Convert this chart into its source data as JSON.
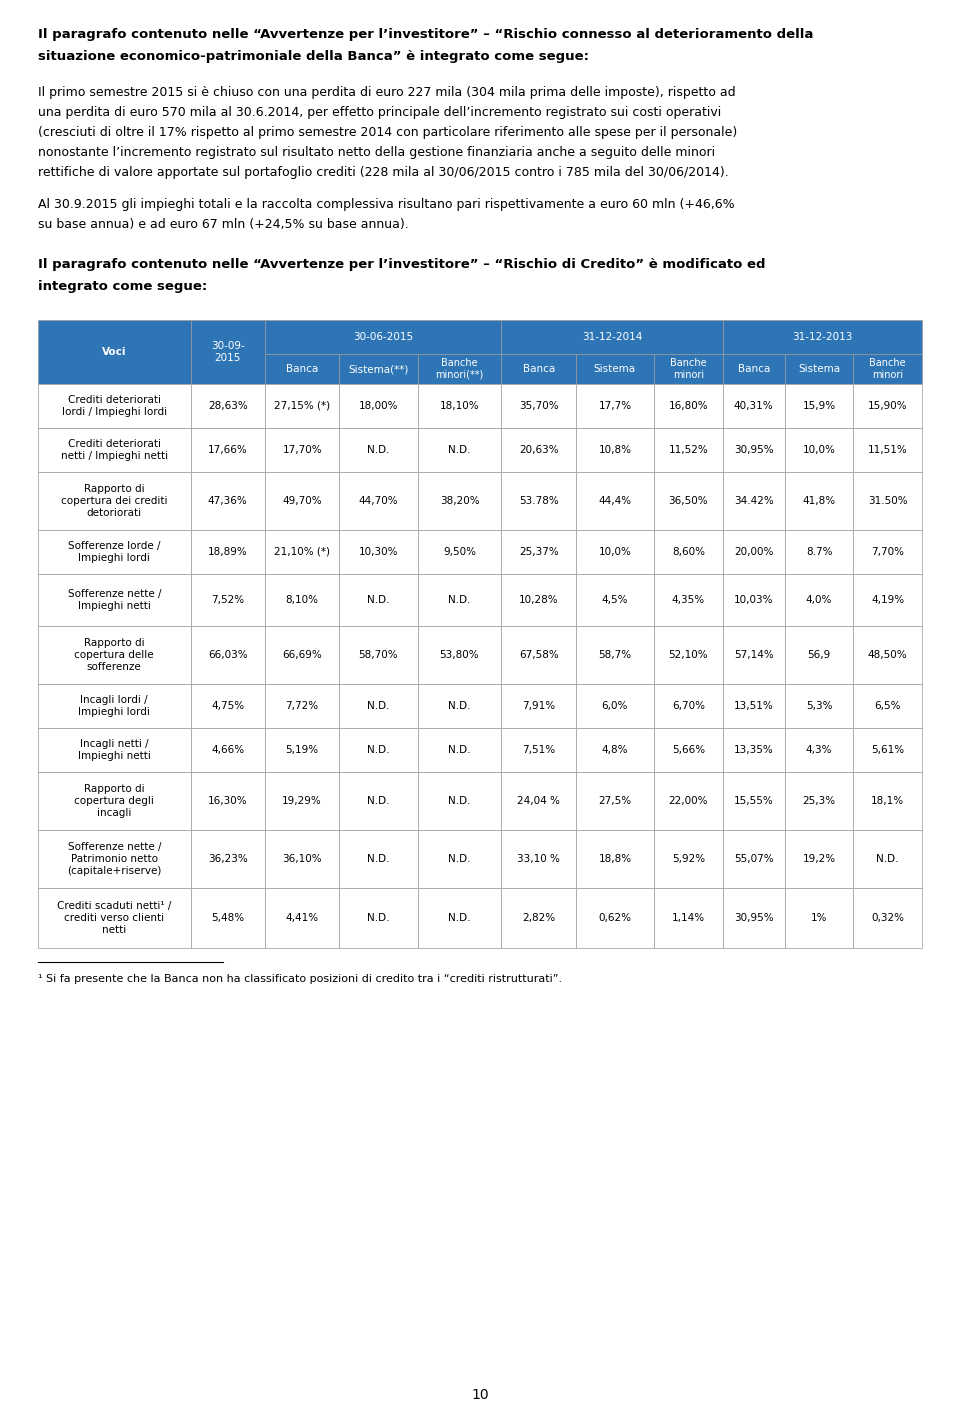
{
  "page_width": 9.6,
  "page_height": 14.16,
  "background_color": "#ffffff",
  "text_color": "#000000",
  "header_bg_color": "#2E75B6",
  "header_text_color": "#ffffff",
  "para1_title_parts": [
    {
      "text": "Il paragrafo contenuto nelle “Avvertenze per l’investitore” – “Rischio connesso al deterioramento della\nsituazione economico-patrimoniale della Banca” è integrato come segue:",
      "bold": true
    }
  ],
  "para1_body_lines": [
    "Il primo semestre 2015 si è chiuso con una perdita di euro 227 mila (304 mila prima delle imposte), rispetto ad",
    "una perdita di euro 570 mila al 30.6.2014, per effetto principale dell’incremento registrato sui costi operativi",
    "(cresciuti di oltre il 17% rispetto al primo semestre 2014 con particolare riferimento alle spese per il personale)",
    "nonostante l’incremento registrato sul risultato netto della gestione finanziaria anche a seguito delle minori",
    "rettifiche di valore apportate sul portafoglio crediti (228 mila al 30/06/2015 contro i 785 mila del 30/06/2014)."
  ],
  "para1_body2_lines": [
    "Al 30.9.2015 gli impieghi totali e la raccolta complessiva risultano pari rispettivamente a euro 60 mln (+46,6%",
    "su base annua) e ad euro 67 mln (+24,5% su base annua)."
  ],
  "para2_title_lines": [
    "Il paragrafo contenuto nelle “Avvertenze per l’investitore” – “Rischio di Credito” è modificato ed",
    "integrato come segue:"
  ],
  "col_weights": [
    1.6,
    0.78,
    0.78,
    0.82,
    0.88,
    0.78,
    0.82,
    0.72,
    0.65,
    0.72,
    0.72
  ],
  "rows": [
    {
      "label": "Crediti deteriorati\nlordi / Impieghi lordi",
      "values": [
        "28,63%",
        "27,15% (*)",
        "18,00%",
        "18,10%",
        "35,70%",
        "17,7%",
        "16,80%",
        "40,31%",
        "15,9%",
        "15,90%"
      ]
    },
    {
      "label": "Crediti deteriorati\nnetti / Impieghi netti",
      "values": [
        "17,66%",
        "17,70%",
        "N.D.",
        "N.D.",
        "20,63%",
        "10,8%",
        "11,52%",
        "30,95%",
        "10,0%",
        "11,51%"
      ]
    },
    {
      "label": "Rapporto di\ncopertura dei crediti\ndetoriorati",
      "values": [
        "47,36%",
        "49,70%",
        "44,70%",
        "38,20%",
        "53.78%",
        "44,4%",
        "36,50%",
        "34.42%",
        "41,8%",
        "31.50%"
      ]
    },
    {
      "label": "Sofferenze lorde /\nImpieghi lordi",
      "values": [
        "18,89%",
        "21,10% (*)",
        "10,30%",
        "9,50%",
        "25,37%",
        "10,0%",
        "8,60%",
        "20,00%",
        "8.7%",
        "7,70%"
      ]
    },
    {
      "label": "Sofferenze nette /\nImpieghi netti",
      "values": [
        "7,52%",
        "8,10%",
        "N.D.",
        "N.D.",
        "10,28%",
        "4,5%",
        "4,35%",
        "10,03%",
        "4,0%",
        "4,19%"
      ]
    },
    {
      "label": "Rapporto di\ncopertura delle\nsofferenze",
      "values": [
        "66,03%",
        "66,69%",
        "58,70%",
        "53,80%",
        "67,58%",
        "58,7%",
        "52,10%",
        "57,14%",
        "56,9",
        "48,50%"
      ]
    },
    {
      "label": "Incagli lordi /\nImpieghi lordi",
      "values": [
        "4,75%",
        "7,72%",
        "N.D.",
        "N.D.",
        "7,91%",
        "6,0%",
        "6,70%",
        "13,51%",
        "5,3%",
        "6,5%"
      ]
    },
    {
      "label": "Incagli netti /\nImpieghi netti",
      "values": [
        "4,66%",
        "5,19%",
        "N.D.",
        "N.D.",
        "7,51%",
        "4,8%",
        "5,66%",
        "13,35%",
        "4,3%",
        "5,61%"
      ]
    },
    {
      "label": "Rapporto di\ncopertura degli\nincagli",
      "values": [
        "16,30%",
        "19,29%",
        "N.D.",
        "N.D.",
        "24,04 %",
        "27,5%",
        "22,00%",
        "15,55%",
        "25,3%",
        "18,1%"
      ]
    },
    {
      "label": "Sofferenze nette /\nPatrimonio netto\n(capitale+riserve)",
      "values": [
        "36,23%",
        "36,10%",
        "N.D.",
        "N.D.",
        "33,10 %",
        "18,8%",
        "5,92%",
        "55,07%",
        "19,2%",
        "N.D."
      ]
    },
    {
      "label": "Crediti scaduti netti¹ /\ncrediti verso clienti\nnetti",
      "values": [
        "5,48%",
        "4,41%",
        "N.D.",
        "N.D.",
        "2,82%",
        "0,62%",
        "1,14%",
        "30,95%",
        "1%",
        "0,32%"
      ]
    }
  ],
  "footnote": "¹ Si fa presente che la Banca non ha classificato posizioni di credito tra i “crediti ristrutturati”.",
  "page_number": "10"
}
